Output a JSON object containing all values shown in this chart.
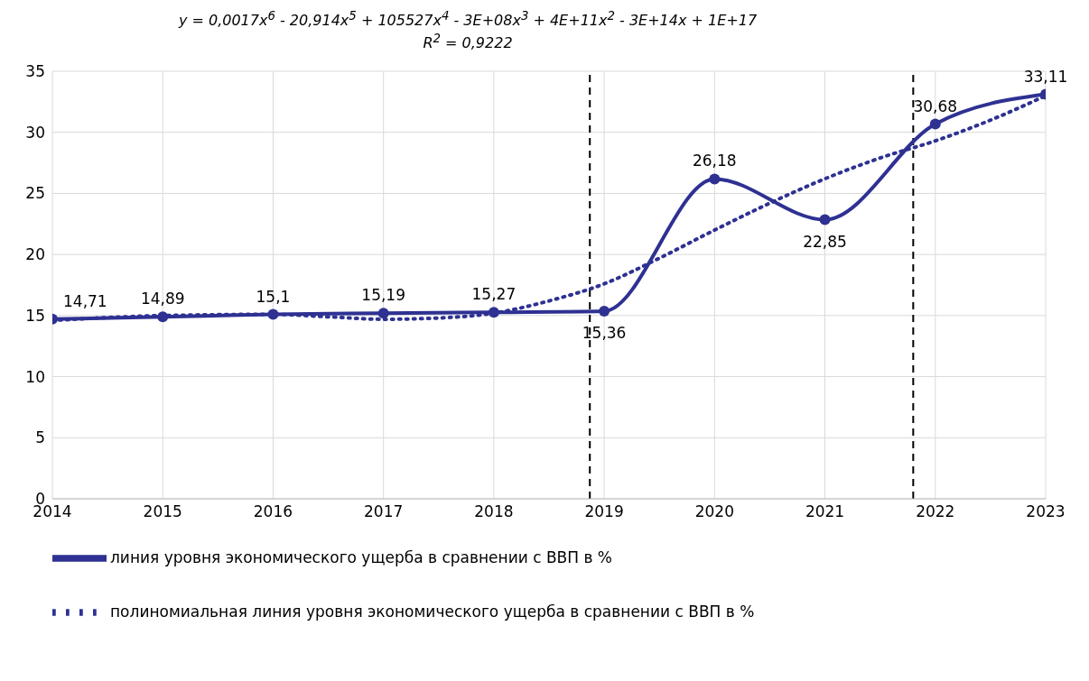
{
  "chart_data": {
    "type": "line",
    "annotations": [
      "y = 0,0017x$^{6}$ - 20,914x$^{5}$ + 105527x$^{4}$ - 3E+08x$^{3}$ + 4E+11x$^{2}$ - 3E+14x + 1E+17",
      "R$^{2}$ = 0,9222"
    ],
    "x": [
      2014,
      2015,
      2016,
      2017,
      2018,
      2019,
      2020,
      2021,
      2022,
      2023
    ],
    "series": [
      {
        "name": "линия уровня экономического ущерба в сравнении с ВВП в %",
        "color": "#2e3192",
        "marker": "circle",
        "line_style": "solid",
        "values": [
          14.71,
          14.89,
          15.1,
          15.19,
          15.27,
          15.36,
          26.18,
          22.85,
          30.68,
          33.11
        ],
        "value_labels": [
          "14,71",
          "14,89",
          "15,1",
          "15,19",
          "15,27",
          "15,36",
          "26,18",
          "22,85",
          "30,68",
          "33,11"
        ]
      },
      {
        "name": "полиномиальная линия уровня экономического ущерба в сравнении с ВВП в %",
        "type": "line",
        "color": "#2e3192",
        "marker": "none",
        "line_style": "dotted",
        "x": [
          2014,
          2015,
          2016,
          2016.5,
          2017,
          2017.5,
          2018,
          2018.5,
          2019,
          2019.5,
          2020,
          2020.5,
          2021,
          2021.5,
          2022,
          2022.5,
          2023
        ],
        "values": [
          14.6,
          15.0,
          15.1,
          14.9,
          14.7,
          14.8,
          15.2,
          16.2,
          17.6,
          19.7,
          22.0,
          24.2,
          26.2,
          27.9,
          29.3,
          31.0,
          33.0
        ]
      }
    ],
    "xlim": [
      2014,
      2023
    ],
    "xticks": [
      2014,
      2015,
      2016,
      2017,
      2018,
      2019,
      2020,
      2021,
      2022,
      2023
    ],
    "ylim": [
      0,
      35
    ],
    "yticks": [
      0,
      5,
      10,
      15,
      20,
      25,
      30,
      35
    ],
    "grid": true,
    "legend": "bottom left",
    "ref_lines": [
      {
        "axis": "x",
        "value": 2018.87,
        "line_style": "dashed",
        "color": "#000000"
      },
      {
        "axis": "x",
        "value": 2021.8,
        "line_style": "dashed",
        "color": "#000000"
      }
    ]
  }
}
